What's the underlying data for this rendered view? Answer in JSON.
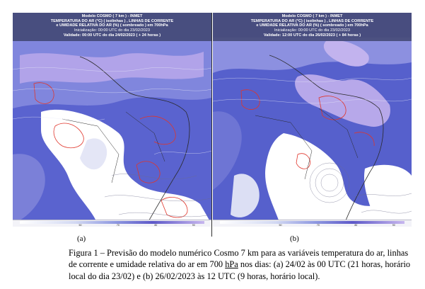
{
  "panels": [
    {
      "id": "a",
      "header": [
        "Modelo COSMO ( 7 km ) - INMET",
        "TEMPERATURA DO AR (°C) ( isolinhas ) , LINHAS DE CORRENTE",
        "e UMIDADE RELATIVA DO AR (%) ( sombreado ) em 700hPa",
        "Inicialização: 00:00 UTC do dia 23/02/2023",
        "Validade: 00:00 UTC do dia 24/02/2023 ( + 24 horas )"
      ],
      "label": "(a)"
    },
    {
      "id": "b",
      "header": [
        "Modelo COSMO ( 7 km ) - INMET",
        "TEMPERATURA DO AR (°C) ( isolinhas ) , LINHAS DE CORRENTE",
        "e UMIDADE RELATIVA DO AR (%) ( sombreado ) em 700hPa",
        "Inicialização: 00:00 UTC do dia 23/02/2023",
        "Validade: 12:00 UTC do dia 26/02/2023 ( + 84 horas )"
      ],
      "label": "(b)"
    }
  ],
  "colorbar": {
    "ticks": [
      "50",
      "70",
      "80",
      "90"
    ],
    "colors": [
      "#ffffff",
      "#d2d8f2",
      "#8d97e0",
      "#5d58c8",
      "#c7b6ee"
    ]
  },
  "caption": {
    "line1": "Figura 1 – Previsão do modelo numérico Cosmo 7 km para as variáveis temperatura do ar, linhas",
    "line2_before": "de corrente e umidade relativa do ar em 700 ",
    "line2_unit": "hPa",
    "line2_after": " nos dias: (a) 24/02 às 00 UTC (21 horas, horário",
    "line3": "local do dia 23/02) e (b) 26/02/2023 às 12 UTC (9 horas, horário local)."
  }
}
